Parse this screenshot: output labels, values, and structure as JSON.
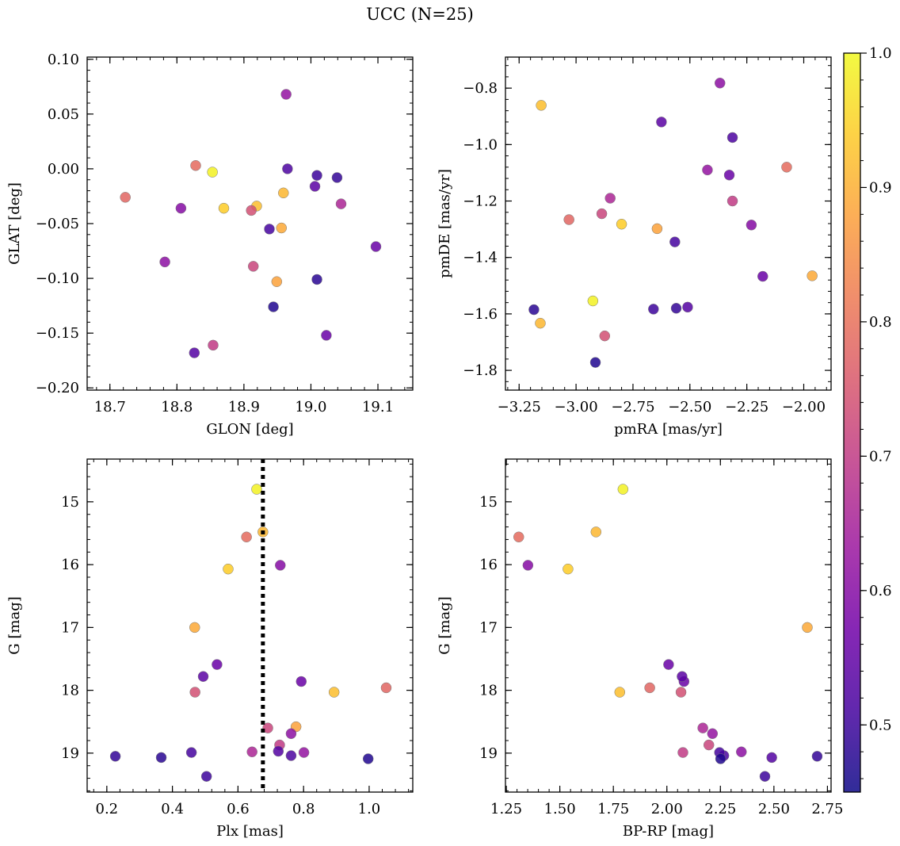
{
  "title": "UCC (N=25)",
  "colorbar": {
    "range": [
      0.45,
      1.0
    ],
    "ticks": [
      0.5,
      0.6,
      0.7,
      0.8,
      0.9,
      1.0
    ],
    "tick_labels": [
      "0.5",
      "0.6",
      "0.7",
      "0.8",
      "0.9",
      "1.0"
    ],
    "colormap": [
      "#0d0887",
      "#46039f",
      "#7201a8",
      "#9c179e",
      "#bd3786",
      "#d8576b",
      "#ed7953",
      "#fb9f3a",
      "#fdca26",
      "#f0f921"
    ]
  },
  "chart_data": [
    {
      "type": "scatter",
      "xlabel": "GLON [deg]",
      "ylabel": "GLAT [deg]",
      "xlim": [
        18.666,
        19.152
      ],
      "ylim": [
        -0.202,
        0.102
      ],
      "xticks": [
        18.7,
        18.8,
        18.9,
        19.0,
        19.1
      ],
      "xtick_labels": [
        "18.7",
        "18.8",
        "18.9",
        "19.0",
        "19.1"
      ],
      "yticks": [
        -0.2,
        -0.15,
        -0.1,
        -0.05,
        0.0,
        0.05,
        0.1
      ],
      "ytick_labels": [
        "−0.20",
        "−0.15",
        "−0.10",
        "−0.05",
        "0.00",
        "0.05",
        "0.10"
      ],
      "points": [
        {
          "x": 18.853,
          "y": -0.003,
          "c": 0.99
        },
        {
          "x": 18.87,
          "y": -0.036,
          "c": 0.94
        },
        {
          "x": 18.919,
          "y": -0.034,
          "c": 0.92
        },
        {
          "x": 18.959,
          "y": -0.022,
          "c": 0.91
        },
        {
          "x": 18.956,
          "y": -0.054,
          "c": 0.89
        },
        {
          "x": 18.949,
          "y": -0.103,
          "c": 0.88
        },
        {
          "x": 18.828,
          "y": 0.003,
          "c": 0.79
        },
        {
          "x": 18.723,
          "y": -0.026,
          "c": 0.78
        },
        {
          "x": 18.911,
          "y": -0.038,
          "c": 0.74
        },
        {
          "x": 18.914,
          "y": -0.089,
          "c": 0.72
        },
        {
          "x": 18.854,
          "y": -0.161,
          "c": 0.7
        },
        {
          "x": 19.045,
          "y": -0.032,
          "c": 0.66
        },
        {
          "x": 18.963,
          "y": 0.068,
          "c": 0.62
        },
        {
          "x": 18.782,
          "y": -0.085,
          "c": 0.61
        },
        {
          "x": 18.806,
          "y": -0.036,
          "c": 0.6
        },
        {
          "x": 19.097,
          "y": -0.071,
          "c": 0.56
        },
        {
          "x": 19.023,
          "y": -0.152,
          "c": 0.56
        },
        {
          "x": 19.006,
          "y": -0.016,
          "c": 0.54
        },
        {
          "x": 18.826,
          "y": -0.168,
          "c": 0.53
        },
        {
          "x": 18.965,
          "y": 0.0,
          "c": 0.52
        },
        {
          "x": 18.938,
          "y": -0.055,
          "c": 0.51
        },
        {
          "x": 19.009,
          "y": -0.006,
          "c": 0.5
        },
        {
          "x": 19.039,
          "y": -0.008,
          "c": 0.49
        },
        {
          "x": 19.009,
          "y": -0.101,
          "c": 0.48
        },
        {
          "x": 18.944,
          "y": -0.126,
          "c": 0.47
        }
      ]
    },
    {
      "type": "scatter",
      "xlabel": "pmRA [mas/yr]",
      "ylabel": "pmDE [mas/yr]",
      "xlim": [
        -3.31,
        -1.88
      ],
      "ylim": [
        -1.87,
        -0.69
      ],
      "xticks": [
        -3.25,
        -3.0,
        -2.75,
        -2.5,
        -2.25,
        -2.0
      ],
      "xtick_labels": [
        "−3.25",
        "−3.00",
        "−2.75",
        "−2.50",
        "−2.25",
        "−2.00"
      ],
      "yticks": [
        -1.8,
        -1.6,
        -1.4,
        -1.2,
        -1.0,
        -0.8
      ],
      "ytick_labels": [
        "−1.8",
        "−1.6",
        "−1.4",
        "−1.2",
        "−1.0",
        "−0.8"
      ],
      "points": [
        {
          "x": -2.926,
          "y": -1.554,
          "c": 0.99
        },
        {
          "x": -2.8,
          "y": -1.282,
          "c": 0.94
        },
        {
          "x": -3.153,
          "y": -0.861,
          "c": 0.92
        },
        {
          "x": -3.157,
          "y": -1.633,
          "c": 0.91
        },
        {
          "x": -1.963,
          "y": -1.465,
          "c": 0.89
        },
        {
          "x": -2.644,
          "y": -1.298,
          "c": 0.88
        },
        {
          "x": -2.075,
          "y": -1.08,
          "c": 0.79
        },
        {
          "x": -3.031,
          "y": -1.266,
          "c": 0.78
        },
        {
          "x": -2.874,
          "y": -1.678,
          "c": 0.74
        },
        {
          "x": -2.887,
          "y": -1.245,
          "c": 0.72
        },
        {
          "x": -2.313,
          "y": -1.2,
          "c": 0.7
        },
        {
          "x": -2.85,
          "y": -1.19,
          "c": 0.66
        },
        {
          "x": -2.423,
          "y": -1.09,
          "c": 0.62
        },
        {
          "x": -2.368,
          "y": -0.782,
          "c": 0.61
        },
        {
          "x": -2.23,
          "y": -1.285,
          "c": 0.6
        },
        {
          "x": -2.327,
          "y": -1.108,
          "c": 0.56
        },
        {
          "x": -2.18,
          "y": -1.467,
          "c": 0.56
        },
        {
          "x": -2.625,
          "y": -0.92,
          "c": 0.54
        },
        {
          "x": -2.51,
          "y": -1.576,
          "c": 0.53
        },
        {
          "x": -2.313,
          "y": -0.975,
          "c": 0.52
        },
        {
          "x": -2.566,
          "y": -1.345,
          "c": 0.51
        },
        {
          "x": -2.66,
          "y": -1.583,
          "c": 0.5
        },
        {
          "x": -2.56,
          "y": -1.58,
          "c": 0.49
        },
        {
          "x": -3.185,
          "y": -1.585,
          "c": 0.48
        },
        {
          "x": -2.915,
          "y": -1.772,
          "c": 0.47
        }
      ]
    },
    {
      "type": "scatter",
      "xlabel": "Plx [mas]",
      "ylabel": "G [mag]",
      "xlim": [
        0.14,
        1.133
      ],
      "ylim": [
        19.62,
        14.32
      ],
      "xticks": [
        0.2,
        0.4,
        0.6,
        0.8,
        1.0
      ],
      "xtick_labels": [
        "0.2",
        "0.4",
        "0.6",
        "0.8",
        "1.0"
      ],
      "yticks": [
        15,
        16,
        17,
        18,
        19
      ],
      "ytick_labels": [
        "15",
        "16",
        "17",
        "18",
        "19"
      ],
      "vline": 0.676,
      "points": [
        {
          "x": 0.657,
          "y": 14.8,
          "c": 0.99
        },
        {
          "x": 0.57,
          "y": 16.07,
          "c": 0.94
        },
        {
          "x": 0.893,
          "y": 18.03,
          "c": 0.92
        },
        {
          "x": 0.676,
          "y": 15.48,
          "c": 0.91
        },
        {
          "x": 0.468,
          "y": 17.0,
          "c": 0.89
        },
        {
          "x": 0.777,
          "y": 18.58,
          "c": 0.88
        },
        {
          "x": 0.626,
          "y": 15.56,
          "c": 0.79
        },
        {
          "x": 1.052,
          "y": 17.96,
          "c": 0.78
        },
        {
          "x": 0.469,
          "y": 18.03,
          "c": 0.74
        },
        {
          "x": 0.691,
          "y": 18.6,
          "c": 0.72
        },
        {
          "x": 0.727,
          "y": 18.87,
          "c": 0.7
        },
        {
          "x": 0.643,
          "y": 18.98,
          "c": 0.66
        },
        {
          "x": 0.801,
          "y": 18.99,
          "c": 0.62
        },
        {
          "x": 0.762,
          "y": 18.69,
          "c": 0.61
        },
        {
          "x": 0.729,
          "y": 16.01,
          "c": 0.6
        },
        {
          "x": 0.793,
          "y": 17.86,
          "c": 0.56
        },
        {
          "x": 0.536,
          "y": 17.59,
          "c": 0.56
        },
        {
          "x": 0.494,
          "y": 17.78,
          "c": 0.54
        },
        {
          "x": 0.723,
          "y": 18.97,
          "c": 0.53
        },
        {
          "x": 0.762,
          "y": 19.04,
          "c": 0.52
        },
        {
          "x": 0.458,
          "y": 18.99,
          "c": 0.51
        },
        {
          "x": 0.504,
          "y": 19.37,
          "c": 0.5
        },
        {
          "x": 0.226,
          "y": 19.05,
          "c": 0.49
        },
        {
          "x": 0.366,
          "y": 19.07,
          "c": 0.48
        },
        {
          "x": 0.997,
          "y": 19.09,
          "c": 0.47
        }
      ]
    },
    {
      "type": "scatter",
      "xlabel": "BP-RP [mag]",
      "ylabel": "G [mag]",
      "xlim": [
        1.246,
        2.767
      ],
      "ylim": [
        19.62,
        14.32
      ],
      "xticks": [
        1.25,
        1.5,
        1.75,
        2.0,
        2.25,
        2.5,
        2.75
      ],
      "xtick_labels": [
        "1.25",
        "1.50",
        "1.75",
        "2.00",
        "2.25",
        "2.50",
        "2.75"
      ],
      "yticks": [
        15,
        16,
        17,
        18,
        19
      ],
      "ytick_labels": [
        "15",
        "16",
        "17",
        "18",
        "19"
      ],
      "points": [
        {
          "x": 1.795,
          "y": 14.8,
          "c": 0.99
        },
        {
          "x": 1.538,
          "y": 16.07,
          "c": 0.94
        },
        {
          "x": 1.78,
          "y": 18.03,
          "c": 0.92
        },
        {
          "x": 1.669,
          "y": 15.48,
          "c": 0.91
        },
        {
          "x": 2.656,
          "y": 17.0,
          "c": 0.89
        },
        {
          "x": 1.308,
          "y": 15.56,
          "c": 0.79
        },
        {
          "x": 1.92,
          "y": 17.96,
          "c": 0.78
        },
        {
          "x": 2.066,
          "y": 18.03,
          "c": 0.74
        },
        {
          "x": 2.196,
          "y": 18.87,
          "c": 0.72
        },
        {
          "x": 2.075,
          "y": 18.99,
          "c": 0.7
        },
        {
          "x": 2.168,
          "y": 18.6,
          "c": 0.66
        },
        {
          "x": 2.213,
          "y": 18.69,
          "c": 0.62
        },
        {
          "x": 1.351,
          "y": 16.01,
          "c": 0.6
        },
        {
          "x": 2.348,
          "y": 18.98,
          "c": 0.61
        },
        {
          "x": 2.08,
          "y": 17.86,
          "c": 0.56
        },
        {
          "x": 2.008,
          "y": 17.59,
          "c": 0.56
        },
        {
          "x": 2.071,
          "y": 17.78,
          "c": 0.54
        },
        {
          "x": 2.266,
          "y": 19.04,
          "c": 0.52
        },
        {
          "x": 2.246,
          "y": 18.99,
          "c": 0.51
        },
        {
          "x": 2.458,
          "y": 19.37,
          "c": 0.5
        },
        {
          "x": 2.49,
          "y": 19.07,
          "c": 0.53
        },
        {
          "x": 2.702,
          "y": 19.05,
          "c": 0.49
        },
        {
          "x": 2.251,
          "y": 19.09,
          "c": 0.47
        }
      ]
    }
  ]
}
